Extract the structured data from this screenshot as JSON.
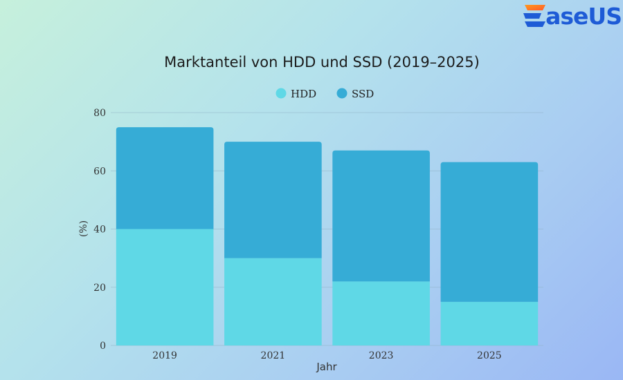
{
  "brand": {
    "logo_text": "aseUS",
    "logo_name": "EaseUS"
  },
  "chart_data": {
    "type": "bar",
    "stacked": true,
    "title": "Marktanteil von HDD und SSD (2019–2025)",
    "xlabel": "Jahr",
    "ylabel": "(%)",
    "categories": [
      "2019",
      "2021",
      "2023",
      "2025"
    ],
    "series": [
      {
        "name": "HDD",
        "values": [
          40,
          30,
          22,
          15
        ],
        "color": "#5fd8e6"
      },
      {
        "name": "SSD",
        "values": [
          35,
          40,
          45,
          48
        ],
        "color": "#36acd6"
      }
    ],
    "ylim": [
      0,
      80
    ],
    "yticks": [
      "0",
      "20",
      "40",
      "60",
      "80"
    ],
    "grid": true,
    "legend_position": "top-center"
  }
}
